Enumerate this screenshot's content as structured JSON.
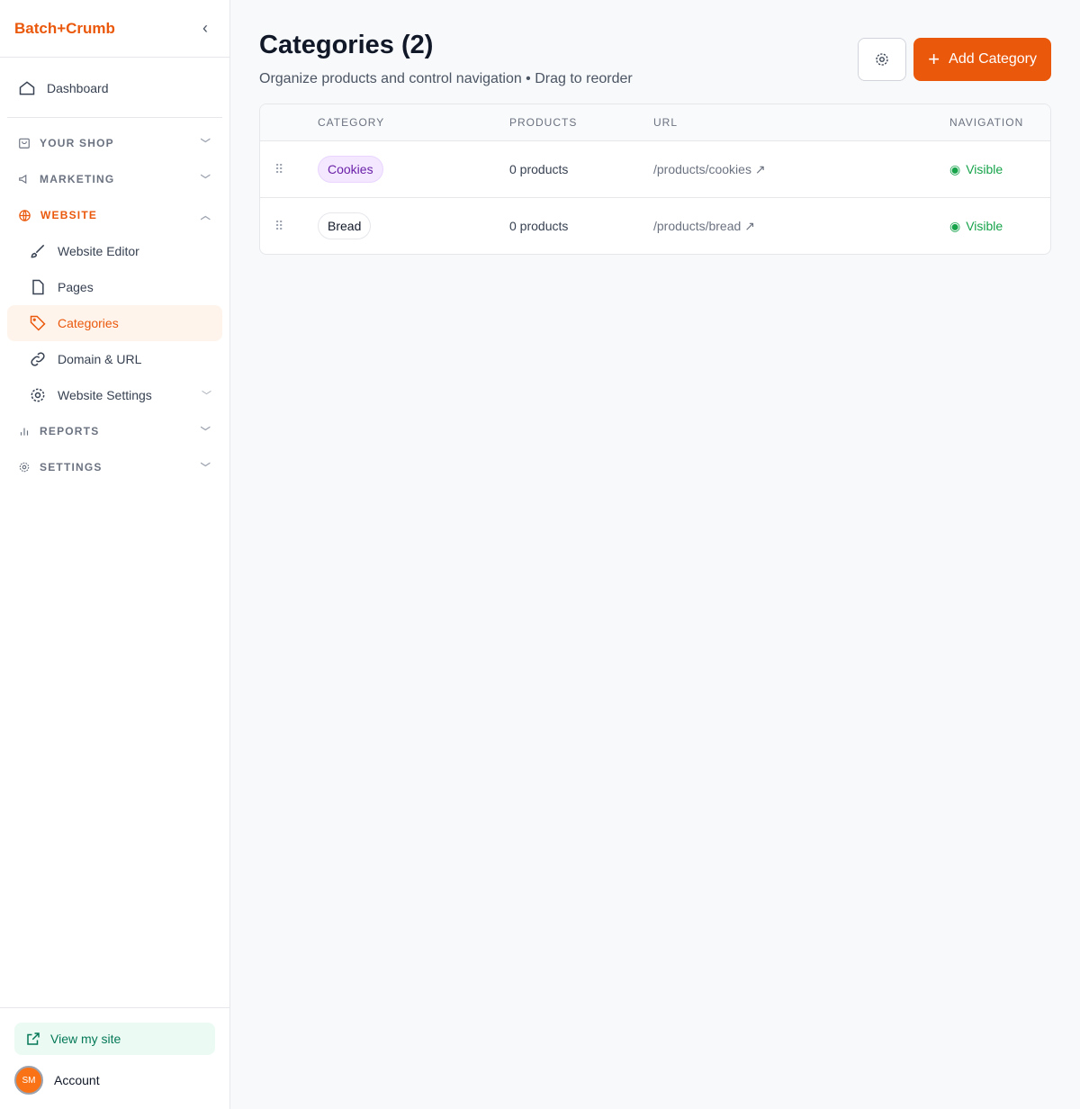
{
  "sidebar": {
    "brand": "Batch+Crumb",
    "dashboard": "Dashboard",
    "sections": {
      "shop": "YOUR SHOP",
      "marketing": "MARKETING",
      "website": "WEBSITE",
      "reports": "REPORTS",
      "settings": "SETTINGS"
    },
    "website_items": [
      "Website Editor",
      "Pages",
      "Categories",
      "Domain & URL",
      "Website Settings"
    ],
    "view_site": "View my site",
    "account": "Account",
    "avatar_initials": "SM"
  },
  "header": {
    "title": "Categories (2)",
    "subtitle": "Organize products and control navigation • Drag to reorder",
    "add_label": "Add Category"
  },
  "table": {
    "columns": [
      "CATEGORY",
      "PRODUCTS",
      "URL",
      "NAVIGATION"
    ],
    "rows": [
      {
        "name": "Cookies",
        "products": "0 products",
        "url": "/products/cookies",
        "nav": "Visible"
      },
      {
        "name": "Bread",
        "products": "0 products",
        "url": "/products/bread",
        "nav": "Visible"
      }
    ]
  },
  "colors": {
    "accent": "#ea580c",
    "visible": "#16a34a"
  }
}
